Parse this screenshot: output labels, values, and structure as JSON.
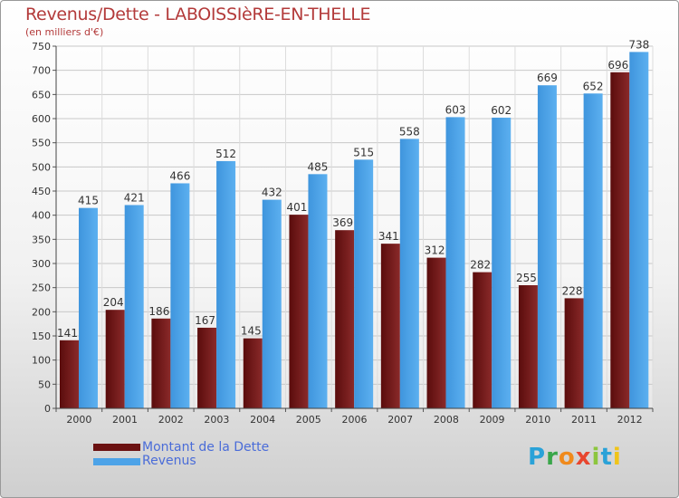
{
  "chart_data": {
    "type": "bar",
    "title": "Revenus/Dette - LABOISSIèRE-EN-THELLE",
    "subtitle": "(en milliers d'€)",
    "categories": [
      "2000",
      "2001",
      "2002",
      "2003",
      "2004",
      "2005",
      "2006",
      "2007",
      "2008",
      "2009",
      "2010",
      "2011",
      "2012"
    ],
    "series": [
      {
        "name": "Montant de la Dette",
        "color": "#6b1111",
        "values": [
          141,
          204,
          186,
          167,
          145,
          401,
          369,
          341,
          312,
          282,
          255,
          228,
          696
        ]
      },
      {
        "name": "Revenus",
        "color": "#4da3e8",
        "values": [
          415,
          421,
          466,
          512,
          432,
          485,
          515,
          558,
          603,
          602,
          669,
          652,
          738
        ]
      }
    ],
    "ylim": [
      0,
      750
    ],
    "yticks": [
      0,
      50,
      100,
      150,
      200,
      250,
      300,
      350,
      400,
      450,
      500,
      550,
      600,
      650,
      700,
      750
    ],
    "grid": true,
    "legend": "bottom-left"
  },
  "logo": {
    "text": "Proxiti",
    "letters": [
      {
        "ch": "P",
        "color": "#2aa2d8"
      },
      {
        "ch": "r",
        "color": "#3aa64a"
      },
      {
        "ch": "o",
        "color": "#f08a1c"
      },
      {
        "ch": "x",
        "color": "#e8462f"
      },
      {
        "ch": "i",
        "color": "#8cc63e"
      },
      {
        "ch": "t",
        "color": "#2aa2d8"
      },
      {
        "ch": "i",
        "color": "#f0c419"
      }
    ]
  }
}
